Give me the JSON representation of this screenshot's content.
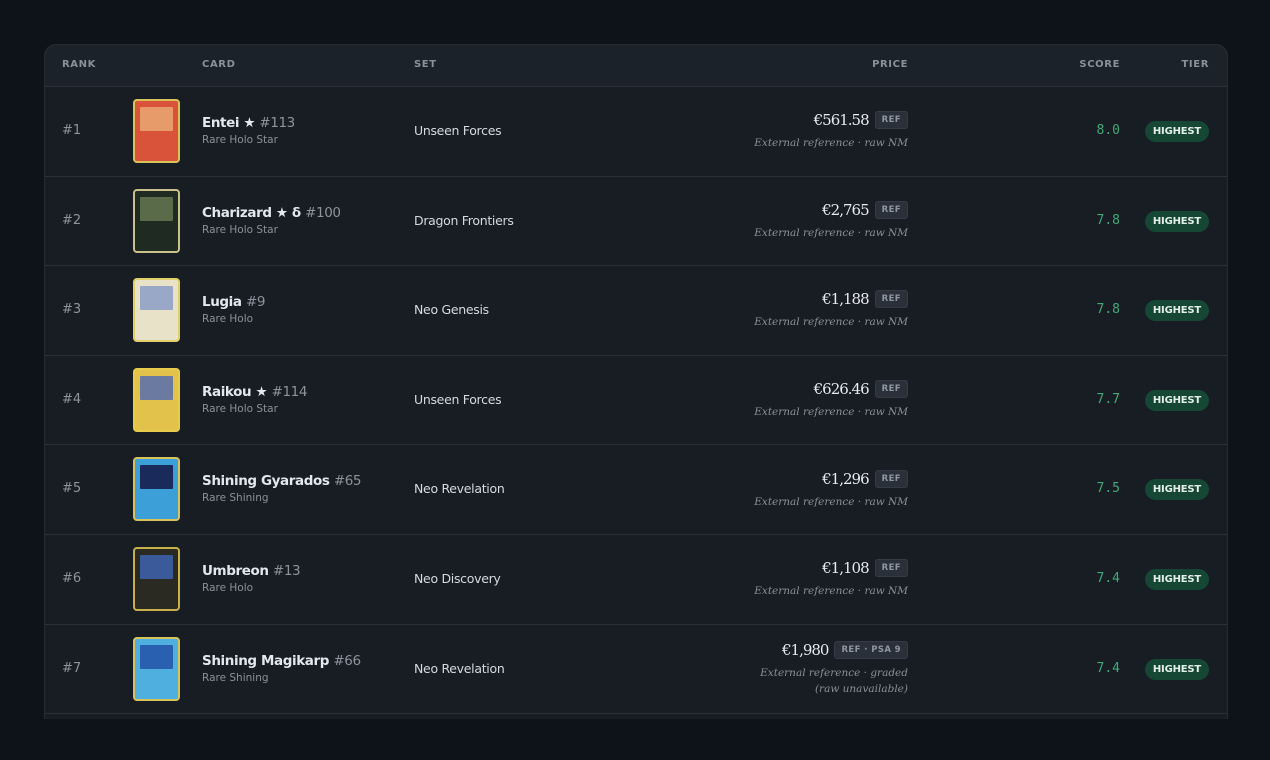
{
  "table": {
    "headers": [
      "RANK",
      "CARD",
      "SET",
      "PRICE",
      "SCORE",
      "TIER"
    ],
    "rows": [
      {
        "rank": "#1",
        "name": "Entei ★",
        "number": "#113",
        "rarity": "Rare Holo Star",
        "set": "Unseen Forces",
        "price": "€561.58",
        "badge": "REF",
        "note": "External reference · raw NM",
        "score": "8.0",
        "tier": "HIGHEST"
      },
      {
        "rank": "#2",
        "name": "Charizard ★ δ",
        "number": "#100",
        "rarity": "Rare Holo Star",
        "set": "Dragon Frontiers",
        "price": "€2,765",
        "badge": "REF",
        "note": "External reference · raw NM",
        "score": "7.8",
        "tier": "HIGHEST"
      },
      {
        "rank": "#3",
        "name": "Lugia",
        "number": "#9",
        "rarity": "Rare Holo",
        "set": "Neo Genesis",
        "price": "€1,188",
        "badge": "REF",
        "note": "External reference · raw NM",
        "score": "7.8",
        "tier": "HIGHEST"
      },
      {
        "rank": "#4",
        "name": "Raikou ★",
        "number": "#114",
        "rarity": "Rare Holo Star",
        "set": "Unseen Forces",
        "price": "€626.46",
        "badge": "REF",
        "note": "External reference · raw NM",
        "score": "7.7",
        "tier": "HIGHEST"
      },
      {
        "rank": "#5",
        "name": "Shining Gyarados",
        "number": "#65",
        "rarity": "Rare Shining",
        "set": "Neo Revelation",
        "price": "€1,296",
        "badge": "REF",
        "note": "External reference · raw NM",
        "score": "7.5",
        "tier": "HIGHEST"
      },
      {
        "rank": "#6",
        "name": "Umbreon",
        "number": "#13",
        "rarity": "Rare Holo",
        "set": "Neo Discovery",
        "price": "€1,108",
        "badge": "REF",
        "note": "External reference · raw NM",
        "score": "7.4",
        "tier": "HIGHEST"
      },
      {
        "rank": "#7",
        "name": "Shining Magikarp",
        "number": "#66",
        "rarity": "Rare Shining",
        "set": "Neo Revelation",
        "price": "€1,980",
        "badge": "REF · PSA 9",
        "note": "External reference · graded (raw unavailable)",
        "score": "7.4",
        "tier": "HIGHEST"
      }
    ]
  }
}
